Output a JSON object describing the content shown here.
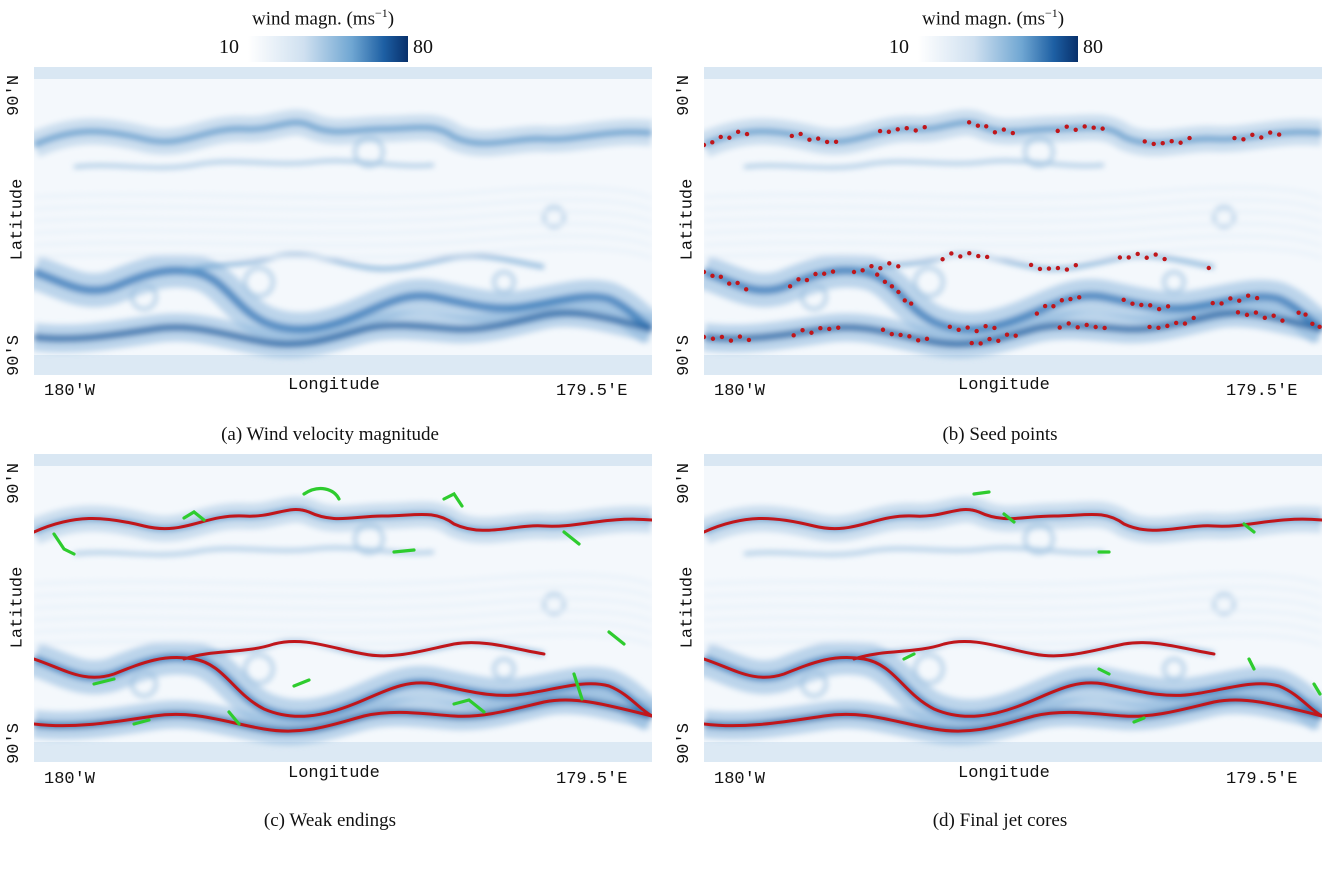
{
  "colorbar": {
    "title": "wind magn. (ms",
    "title_sup": "−1",
    "title_end": ")",
    "min": "10",
    "max": "80"
  },
  "axes": {
    "lat_top": "90'N",
    "lat_bottom": "90'S",
    "lat_label": "Latitude",
    "lon_left": "180'W",
    "lon_label": "Longitude",
    "lon_right": "179.5'E"
  },
  "panels": [
    {
      "caption": "(a) Wind velocity magnitude",
      "overlay": "none"
    },
    {
      "caption": "(b) Seed points",
      "overlay": "seeds"
    },
    {
      "caption": "(c) Weak endings",
      "overlay": "lines-weak"
    },
    {
      "caption": "(d) Final jet cores",
      "overlay": "lines-final"
    }
  ],
  "colors": {
    "seed": "#c0161b",
    "jet_core": "#c0161b",
    "weak_end": "#2ecc2e"
  }
}
